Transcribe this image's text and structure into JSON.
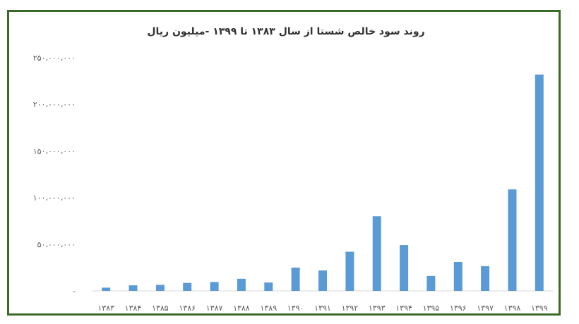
{
  "colors": {
    "frame": "#3c6a26",
    "bar": "#5b9bd5",
    "axis": "#d9d9d9",
    "text": "#595959"
  },
  "chart_data": {
    "type": "bar",
    "title": "روند سود خالص شستا از سال ۱۳۸۳ تا ۱۳۹۹ -میلیون ریال",
    "xlabel": "",
    "ylabel": "",
    "ylim": [
      0,
      250000000
    ],
    "grid": false,
    "legend": "none",
    "categories": [
      "۱۳۸۳",
      "۱۳۸۴",
      "۱۳۸۵",
      "۱۳۸۶",
      "۱۳۸۷",
      "۱۳۸۸",
      "۱۳۸۹",
      "۱۳۹۰",
      "۱۳۹۱",
      "۱۳۹۲",
      "۱۳۹۳",
      "۱۳۹۴",
      "۱۳۹۵",
      "۱۳۹۶",
      "۱۳۹۷",
      "۱۳۹۸",
      "۱۳۹۹"
    ],
    "values": [
      3500000,
      6000000,
      6500000,
      8500000,
      9500000,
      13000000,
      9000000,
      25000000,
      22000000,
      42000000,
      80000000,
      49000000,
      16000000,
      31000000,
      26500000,
      109000000,
      232000000
    ],
    "yticks": [
      {
        "value": 0,
        "label": "-"
      },
      {
        "value": 50000000,
        "label": "۵۰،۰۰۰،۰۰۰"
      },
      {
        "value": 100000000,
        "label": "۱۰۰،۰۰۰،۰۰۰"
      },
      {
        "value": 150000000,
        "label": "۱۵۰،۰۰۰،۰۰۰"
      },
      {
        "value": 200000000,
        "label": "۲۰۰،۰۰۰،۰۰۰"
      },
      {
        "value": 250000000,
        "label": "۲۵۰،۰۰۰،۰۰۰"
      }
    ]
  }
}
